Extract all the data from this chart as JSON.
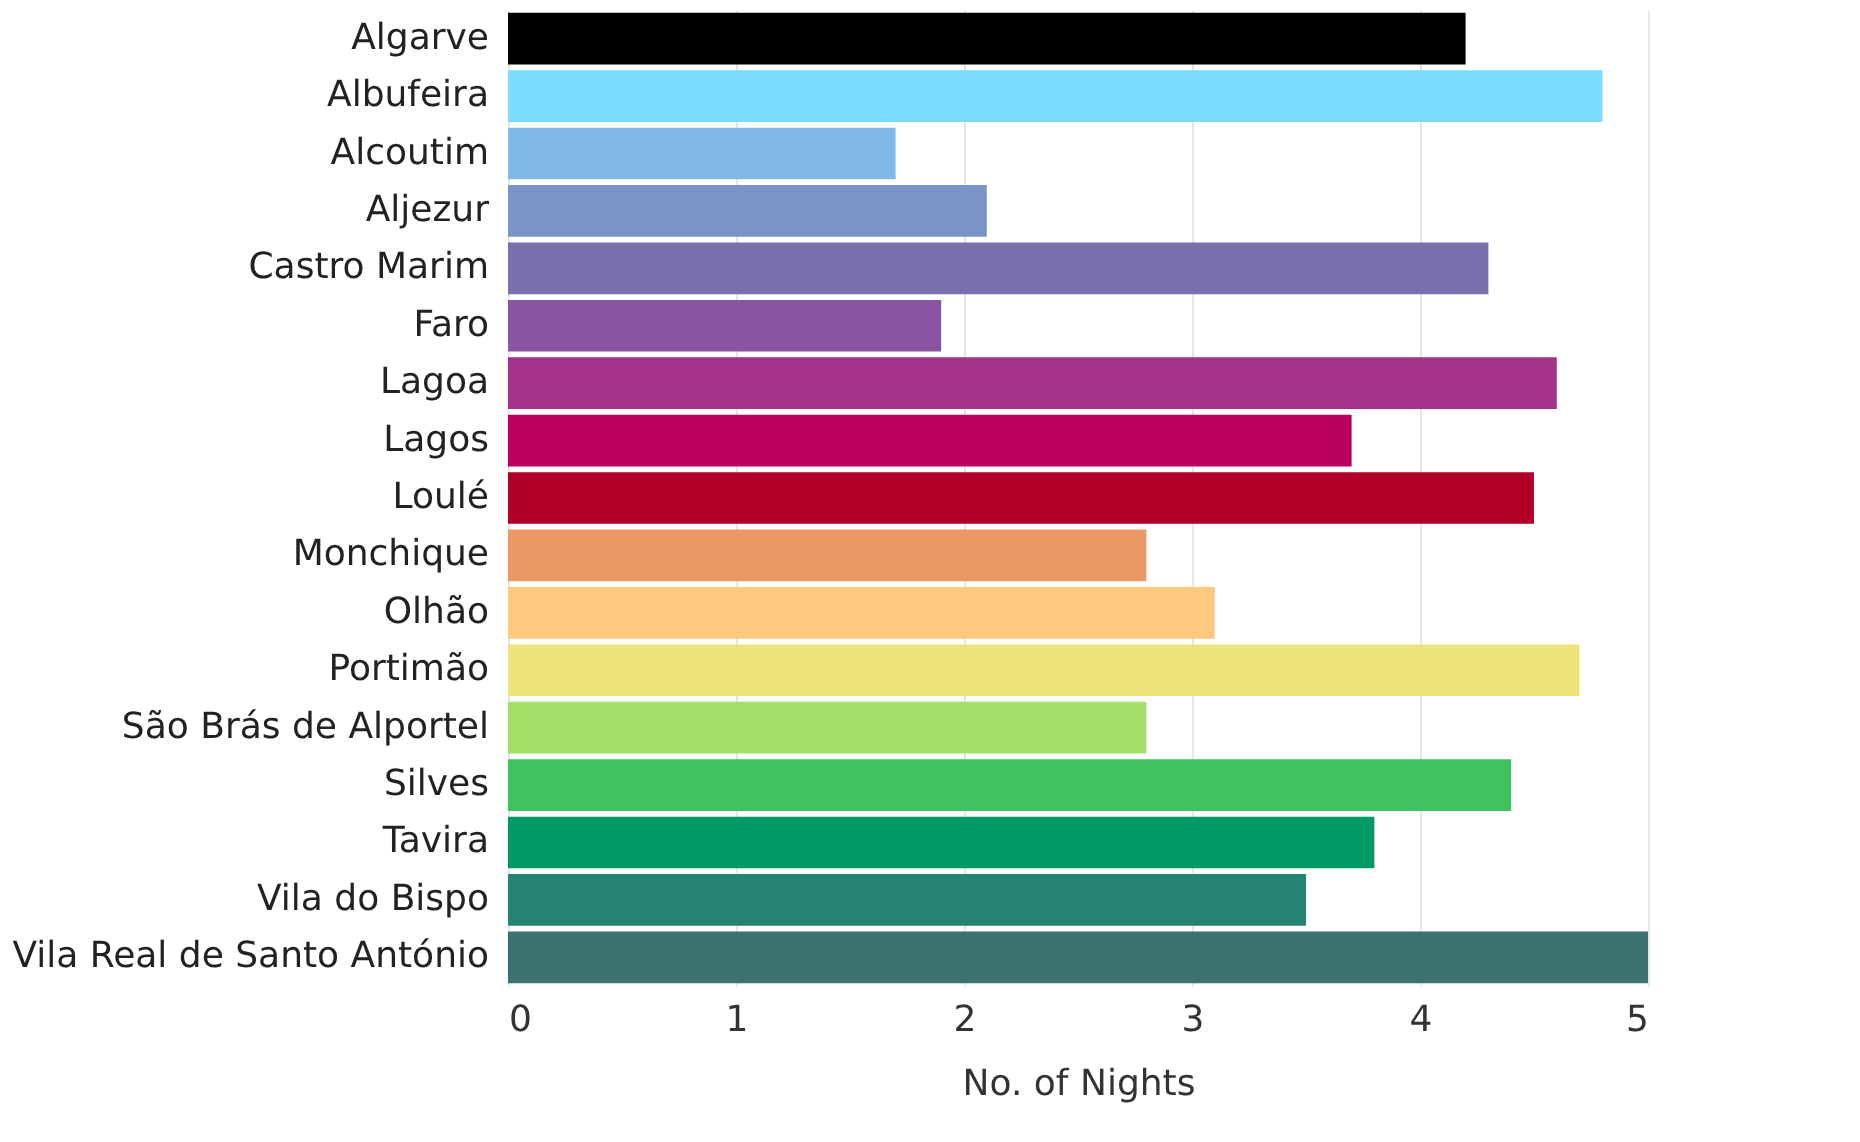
{
  "chart_data": {
    "type": "bar",
    "orientation": "horizontal",
    "xlabel": "No. of Nights",
    "categories": [
      "Algarve",
      "Albufeira",
      "Alcoutim",
      "Aljezur",
      "Castro Marim",
      "Faro",
      "Lagoa",
      "Lagos",
      "Loulé",
      "Monchique",
      "Olhão",
      "Portimão",
      "São Brás de Alportel",
      "Silves",
      "Tavira",
      "Vila do Bispo",
      "Vila Real de Santo António"
    ],
    "values": [
      4.2,
      4.8,
      1.7,
      2.1,
      4.3,
      1.9,
      4.6,
      3.7,
      4.5,
      2.8,
      3.1,
      4.7,
      2.8,
      4.4,
      3.8,
      3.5,
      5.0
    ],
    "colors": [
      "#000000",
      "#79dcff",
      "#7fb9e6",
      "#7a93c8",
      "#7a70b0",
      "#8a55a0",
      "#a33288",
      "#bb0060",
      "#b00028",
      "#ec9866",
      "#ffc87f",
      "#ece37a",
      "#a6de6a",
      "#3fc35e",
      "#009a66",
      "#268572",
      "#3b7370"
    ],
    "xlim": [
      0,
      5
    ],
    "xticks": [
      0,
      1,
      2,
      3,
      4,
      5
    ],
    "grid": "x"
  }
}
